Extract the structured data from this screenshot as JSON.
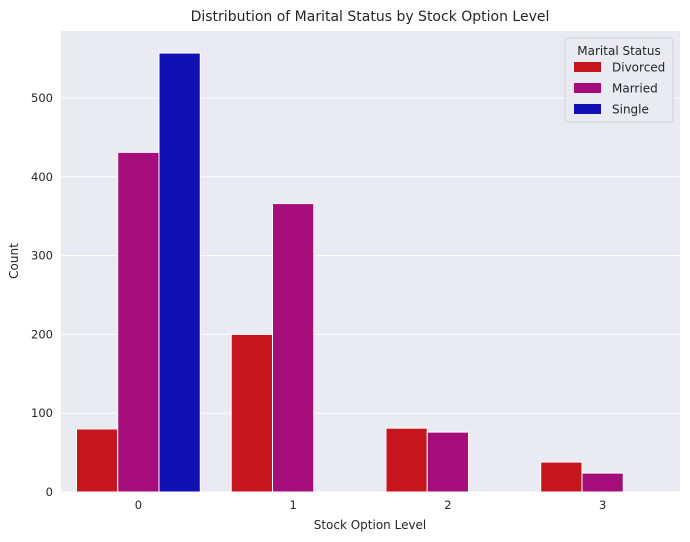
{
  "chart_data": {
    "type": "bar",
    "title": "Distribution of Marital Status by Stock Option Level",
    "xlabel": "Stock Option Level",
    "ylabel": "Count",
    "categories": [
      "0",
      "1",
      "2",
      "3"
    ],
    "ylim": [
      0,
      585
    ],
    "yticks": [
      0,
      100,
      200,
      300,
      400,
      500
    ],
    "grid": true,
    "legend": {
      "title": "Marital Status",
      "placement": "top-right"
    },
    "series": [
      {
        "name": "Divorced",
        "color": "#c4161c",
        "values": [
          80,
          200,
          81,
          38
        ]
      },
      {
        "name": "Married",
        "color": "#a50e7a",
        "values": [
          431,
          366,
          76,
          24
        ]
      },
      {
        "name": "Single",
        "color": "#1010b3",
        "values": [
          557,
          0,
          0,
          0
        ]
      }
    ],
    "plot_background": "#eaeaf2",
    "grid_color": "#ffffff"
  }
}
